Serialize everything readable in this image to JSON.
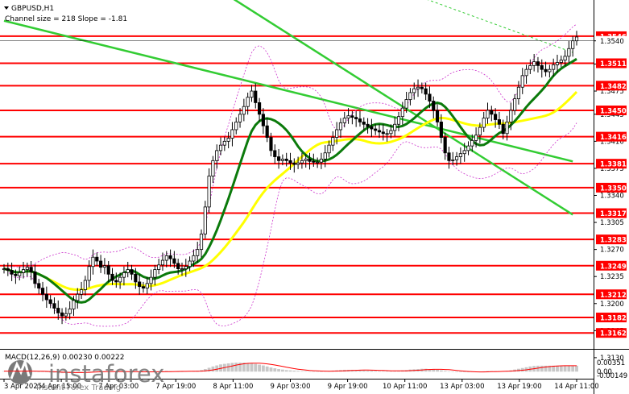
{
  "header": {
    "symbol": "GBPUSD,H1",
    "channel_info": "Channel size = 218 Slope = -1.81"
  },
  "macd": {
    "label": "MACD(12,26,9) 0.00230 0.00222",
    "scale_labels": [
      "0.00351",
      "0.00",
      "-0.00149"
    ]
  },
  "watermark": {
    "brand": "instaforex",
    "tagline": "Instant Forex Trading"
  },
  "colors": {
    "level_line": "#ff0000",
    "channel_line": "#33cc33",
    "ma_fast": "#0b7a0b",
    "ma_slow": "#ffff00",
    "bollinger": "#cc33cc",
    "candles": "#000000",
    "macd_hist": "#c8c8c8",
    "macd_signal": "#ff0000"
  },
  "chart_data": {
    "type": "candlestick",
    "series": [
      {
        "name": "GBPUSD,H1",
        "close": [
          1.3245,
          1.3243,
          1.3238,
          1.3236,
          1.324,
          1.3244,
          1.3247,
          1.3241,
          1.3226,
          1.322,
          1.3212,
          1.3205,
          1.32,
          1.3194,
          1.3188,
          1.3184,
          1.3187,
          1.3193,
          1.3204,
          1.3212,
          1.3218,
          1.323,
          1.3248,
          1.326,
          1.3255,
          1.3247,
          1.3249,
          1.3238,
          1.323,
          1.3228,
          1.3234,
          1.324,
          1.3244,
          1.3238,
          1.3228,
          1.3222,
          1.322,
          1.3226,
          1.3234,
          1.3244,
          1.325,
          1.3256,
          1.3262,
          1.3258,
          1.3252,
          1.3245,
          1.3245,
          1.3248,
          1.3255,
          1.3262,
          1.327,
          1.329,
          1.3325,
          1.3365,
          1.3385,
          1.3398,
          1.3405,
          1.341,
          1.3414,
          1.3425,
          1.3435,
          1.3445,
          1.3455,
          1.3467,
          1.3475,
          1.346,
          1.3445,
          1.343,
          1.3415,
          1.3398,
          1.339,
          1.3385,
          1.3387,
          1.3385,
          1.3382,
          1.338,
          1.3382,
          1.3385,
          1.3387,
          1.3384,
          1.3383,
          1.3383,
          1.3387,
          1.3395,
          1.3405,
          1.3415,
          1.3425,
          1.3434,
          1.344,
          1.3443,
          1.3441,
          1.3439,
          1.3435,
          1.3432,
          1.3429,
          1.3426,
          1.3424,
          1.3422,
          1.342,
          1.342,
          1.3424,
          1.3432,
          1.3442,
          1.3453,
          1.3464,
          1.3473,
          1.3478,
          1.348,
          1.3478,
          1.3471,
          1.3462,
          1.345,
          1.3435,
          1.3415,
          1.3395,
          1.3385,
          1.3386,
          1.339,
          1.3394,
          1.3398,
          1.3404,
          1.3411,
          1.3418,
          1.3428,
          1.344,
          1.345,
          1.3445,
          1.3438,
          1.3432,
          1.342,
          1.3435,
          1.345,
          1.3465,
          1.348,
          1.3495,
          1.3503,
          1.3508,
          1.3513,
          1.3508,
          1.3503,
          1.35,
          1.3503,
          1.3509,
          1.3512,
          1.3515,
          1.352,
          1.353,
          1.354,
          1.3545
        ]
      }
    ],
    "x_tick_labels": [
      "3 Apr 2025",
      "4 Apr 15:00",
      "7 Apr 03:00",
      "7 Apr 19:00",
      "8 Apr 11:00",
      "9 Apr 03:00",
      "9 Apr 19:00",
      "10 Apr 11:00",
      "13 Apr 03:00",
      "13 Apr 19:00",
      "14 Apr 11:00"
    ],
    "y_tick_labels": [
      "1.3540",
      "1.3510",
      "1.3475",
      "1.3445",
      "1.3410",
      "1.3375",
      "1.3340",
      "1.3305",
      "1.3270",
      "1.3235",
      "1.3200",
      "1.3165",
      "1.3130"
    ],
    "price_levels": [
      1.3546,
      1.3511,
      1.3482,
      1.345,
      1.3416,
      1.3381,
      1.335,
      1.3317,
      1.3283,
      1.3249,
      1.3212,
      1.3182,
      1.3162
    ],
    "current_price": "1.3540",
    "ylim": [
      1.3157,
      1.3572
    ],
    "channel_lines": [
      {
        "from": [
          0,
          1.3566
        ],
        "to": [
          147,
          1.3384
        ]
      },
      {
        "from": [
          0,
          1.3783
        ],
        "to": [
          147,
          1.3315
        ]
      },
      {
        "from": [
          108,
          1.3596
        ],
        "to": [
          147,
          1.3525
        ]
      }
    ],
    "macd_histogram": [
      0.0002,
      0.0002,
      0.0002,
      0.0002,
      0.0002,
      0.0002,
      0.0003,
      0.0002,
      0.0001,
      0.0,
      -0.0001,
      -0.0002,
      -0.0003,
      -0.0004,
      -0.0005,
      -0.0006,
      -0.0005,
      -0.0004,
      -0.0003,
      -0.0002,
      -0.0001,
      0.0,
      0.0001,
      0.0002,
      0.0002,
      0.0001,
      0.0001,
      0.0,
      -0.0001,
      -0.0001,
      -0.0001,
      0.0,
      0.0001,
      0.0,
      -0.0001,
      -0.0002,
      -0.0002,
      -0.0002,
      -0.0001,
      0.0,
      0.0001,
      0.0002,
      0.0003,
      0.0002,
      0.0001,
      0.0,
      0.0,
      0.0001,
      0.0002,
      0.0003,
      0.0004,
      0.0006,
      0.001,
      0.0015,
      0.002,
      0.0024,
      0.0028,
      0.003,
      0.0032,
      0.0034,
      0.0035,
      0.0035,
      0.0035,
      0.0034,
      0.0032,
      0.003,
      0.0027,
      0.0024,
      0.002,
      0.0016,
      0.0013,
      0.001,
      0.0008,
      0.0006,
      0.0005,
      0.0004,
      0.0003,
      0.0002,
      0.0002,
      0.0001,
      0.0001,
      0.0001,
      0.0001,
      0.0002,
      0.0003,
      0.0004,
      0.0005,
      0.0006,
      0.0007,
      0.0007,
      0.0007,
      0.0006,
      0.0006,
      0.0005,
      0.0004,
      0.0004,
      0.0003,
      0.0002,
      0.0002,
      0.0002,
      0.0002,
      0.0003,
      0.0004,
      0.0005,
      0.0006,
      0.0008,
      0.0009,
      0.001,
      0.0011,
      0.0011,
      0.001,
      0.0009,
      0.0007,
      0.0005,
      0.0003,
      0.0001,
      -0.0001,
      -0.0002,
      -0.0002,
      -0.0002,
      -0.0002,
      -0.0001,
      -0.0001,
      0.0,
      0.0001,
      0.0002,
      0.0002,
      0.0002,
      0.0002,
      0.0002,
      0.0003,
      0.0005,
      0.0008,
      0.0011,
      0.0014,
      0.0017,
      0.002,
      0.0022,
      0.0023,
      0.0023,
      0.0023,
      0.0023,
      0.0023,
      0.0023,
      0.0023,
      0.0023,
      0.0023,
      0.0023,
      0.0023
    ],
    "macd_ylim": [
      -0.00149,
      0.00351
    ],
    "grid": false
  }
}
